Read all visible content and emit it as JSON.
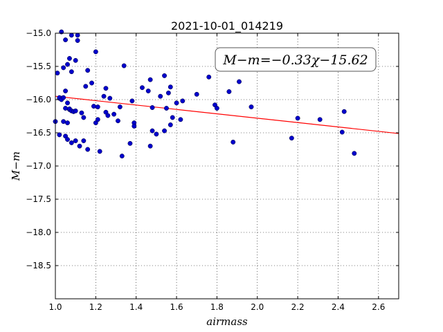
{
  "chart_data": {
    "type": "scatter",
    "title": "2021-10-01_014219",
    "xlabel": "airmass",
    "ylabel": "M−m",
    "xlim": [
      1.0,
      2.7
    ],
    "ylim": [
      -15.0,
      -19.0
    ],
    "y_inverted": true,
    "grid": true,
    "x_ticks": [
      1.0,
      1.2,
      1.4,
      1.6,
      1.8,
      2.0,
      2.2,
      2.4,
      2.6
    ],
    "x_tick_labels": [
      "1.0",
      "1.2",
      "1.4",
      "1.6",
      "1.8",
      "2.0",
      "2.2",
      "2.4",
      "2.6"
    ],
    "y_ticks": [
      -15.0,
      -15.5,
      -16.0,
      -16.5,
      -17.0,
      -17.5,
      -18.0,
      -18.5
    ],
    "y_tick_labels": [
      "−15.0",
      "−15.5",
      "−16.0",
      "−16.5",
      "−17.0",
      "−17.5",
      "−18.0",
      "−18.5"
    ],
    "annotation": "M−m=−0.33χ−15.62",
    "fit": {
      "slope": -0.33,
      "intercept": -15.62,
      "color": "#ff0000"
    },
    "point_color": "#0000cc",
    "x": [
      1.0,
      1.01,
      1.02,
      1.03,
      1.03,
      1.04,
      1.05,
      1.05,
      1.06,
      1.06,
      1.07,
      1.07,
      1.08,
      1.08,
      1.09,
      1.1,
      1.11,
      1.11,
      1.02,
      1.02,
      1.03,
      1.04,
      1.05,
      1.06,
      1.07,
      1.08,
      1.09,
      1.1,
      1.13,
      1.14,
      1.15,
      1.16,
      1.18,
      1.19,
      1.2,
      1.21,
      1.04,
      1.05,
      1.06,
      1.08,
      1.1,
      1.12,
      1.14,
      1.16,
      1.2,
      1.21,
      1.22,
      1.24,
      1.25,
      1.25,
      1.26,
      1.27,
      1.29,
      1.31,
      1.32,
      1.33,
      1.34,
      1.37,
      1.38,
      1.39,
      1.39,
      1.43,
      1.46,
      1.47,
      1.47,
      1.48,
      1.48,
      1.5,
      1.52,
      1.54,
      1.54,
      1.55,
      1.56,
      1.57,
      1.57,
      1.58,
      1.6,
      1.62,
      1.63,
      1.7,
      1.76,
      1.79,
      1.8,
      1.86,
      1.88,
      1.91,
      1.97,
      2.17,
      2.2,
      2.31,
      2.42,
      2.43,
      2.48
    ],
    "y": [
      -16.33,
      -15.6,
      -16.53,
      -15.98,
      -14.98,
      -15.52,
      -15.1,
      -16.13,
      -16.35,
      -15.47,
      -15.38,
      -16.15,
      -15.03,
      -15.58,
      -16.18,
      -15.41,
      -15.03,
      -15.11,
      -15.98,
      -15.97,
      -16.0,
      -15.97,
      -15.87,
      -16.05,
      -16.14,
      -16.17,
      -16.18,
      -16.17,
      -16.2,
      -16.27,
      -15.8,
      -15.56,
      -15.75,
      -16.1,
      -15.28,
      -16.11,
      -16.33,
      -16.55,
      -16.6,
      -16.65,
      -16.62,
      -16.7,
      -16.62,
      -16.75,
      -16.35,
      -16.3,
      -16.78,
      -15.95,
      -15.83,
      -16.19,
      -16.24,
      -15.98,
      -16.22,
      -16.32,
      -16.11,
      -16.85,
      -15.49,
      -16.66,
      -16.02,
      -16.35,
      -16.4,
      -15.82,
      -15.87,
      -16.7,
      -15.7,
      -16.47,
      -16.12,
      -16.52,
      -15.95,
      -15.64,
      -16.47,
      -16.13,
      -15.9,
      -16.38,
      -15.81,
      -16.27,
      -16.05,
      -16.3,
      -16.02,
      -15.92,
      -15.66,
      -16.08,
      -16.13,
      -15.88,
      -16.64,
      -15.73,
      -16.11,
      -16.58,
      -16.28,
      -16.3,
      -16.49,
      -16.18,
      -16.81
    ]
  }
}
